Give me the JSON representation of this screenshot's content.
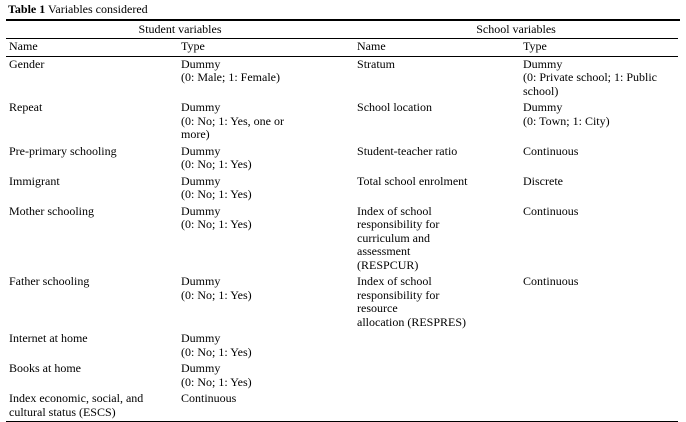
{
  "caption": {
    "label": "Table 1",
    "title": " Variables considered"
  },
  "table": {
    "groups": [
      "Student variables",
      "School variables"
    ],
    "columns": [
      "Name",
      "Type",
      "Name",
      "Type"
    ],
    "rows": [
      [
        "Gender",
        "Dummy\n(0: Male; 1: Female)",
        "Stratum",
        "Dummy\n(0: Private school; 1: Public\nschool)"
      ],
      [
        "Repeat",
        "Dummy\n(0: No; 1: Yes, one or\nmore)",
        "School location",
        "Dummy\n(0: Town; 1: City)"
      ],
      [
        "Pre-primary schooling",
        "Dummy\n(0: No; 1: Yes)",
        "Student-teacher ratio",
        "Continuous"
      ],
      [
        "Immigrant",
        "Dummy\n(0: No; 1: Yes)",
        "Total school enrolment",
        "Discrete"
      ],
      [
        "Mother schooling",
        "Dummy\n(0: No; 1: Yes)",
        "Index of school\nresponsibility for\ncurriculum and\nassessment\n(RESPCUR)",
        "Continuous"
      ],
      [
        "Father schooling",
        "Dummy\n(0: No; 1: Yes)",
        "Index of school\nresponsibility for\nresource\nallocation (RESPRES)",
        "Continuous"
      ],
      [
        "Internet at home",
        "Dummy\n(0: No; 1: Yes)",
        "",
        ""
      ],
      [
        "Books at home",
        "Dummy\n(0: No; 1: Yes)",
        "",
        ""
      ],
      [
        "Index economic, social, and\ncultural status (ESCS)",
        "Continuous",
        "",
        ""
      ]
    ]
  }
}
